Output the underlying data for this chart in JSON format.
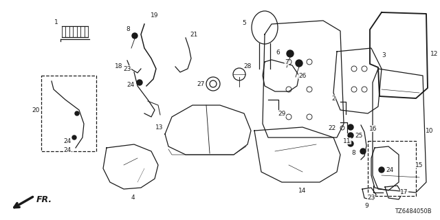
{
  "bg_color": "#ffffff",
  "diagram_code": "TZ6484050B",
  "fr_label": "FR.",
  "line_color": "#1a1a1a",
  "label_fontsize": 6.5,
  "diagram_fontsize": 6.0
}
